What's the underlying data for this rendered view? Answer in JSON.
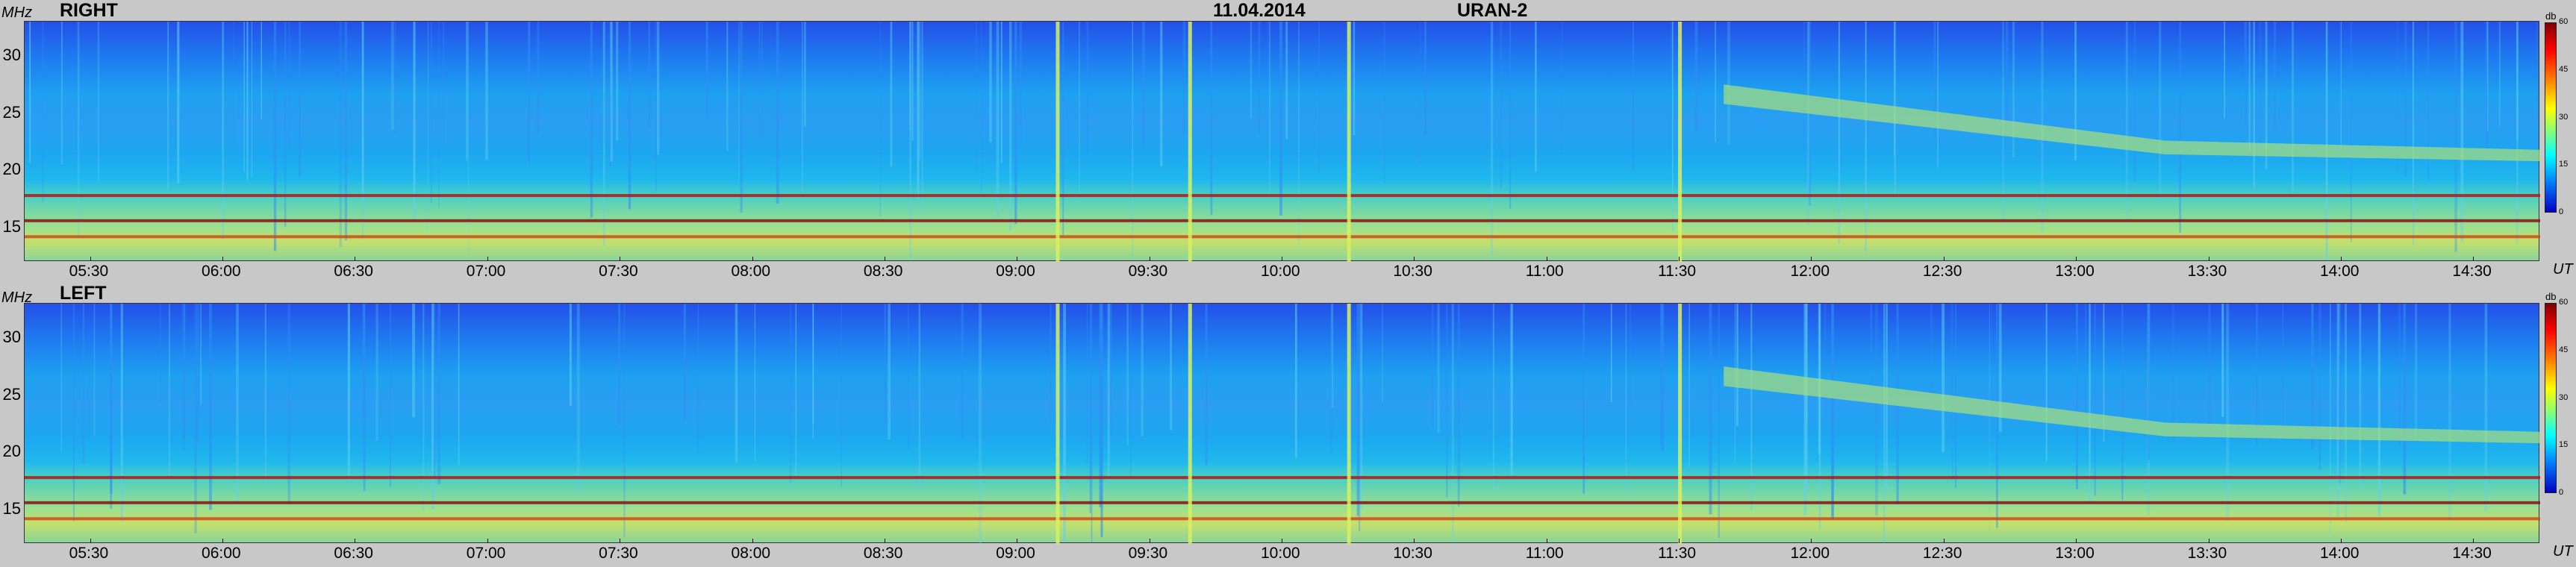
{
  "header": {
    "date": "11.04.2014",
    "instrument": "URAN-2"
  },
  "colors": {
    "background": "#c8c8c8",
    "plot_low": "#2450e8",
    "plot_high": "#c4e06c",
    "band_dark": "#8a1010",
    "band_mid": "#e06020"
  },
  "chart_data": [
    {
      "type": "heatmap",
      "title": "RIGHT",
      "ylabel": "MHz",
      "xlabel": "UT",
      "ylim": [
        12,
        33
      ],
      "yticks": [
        "30",
        "25",
        "20",
        "15"
      ],
      "xticks": [
        "05:30",
        "06:00",
        "06:30",
        "07:00",
        "07:30",
        "08:00",
        "08:30",
        "09:00",
        "09:30",
        "10:00",
        "10:30",
        "11:00",
        "11:30",
        "12:00",
        "12:30",
        "13:00",
        "13:30",
        "14:00",
        "14:30"
      ],
      "colorbar": {
        "unit": "db",
        "range": [
          0,
          60
        ],
        "ticks": [
          "60",
          "45",
          "30",
          "15",
          "0"
        ]
      },
      "bands_mhz": [
        17.8,
        15.6,
        14.2
      ],
      "bursts_ut": [
        "09:09",
        "09:39",
        "10:15",
        "11:30"
      ]
    },
    {
      "type": "heatmap",
      "title": "LEFT",
      "ylabel": "MHz",
      "xlabel": "UT",
      "ylim": [
        12,
        33
      ],
      "yticks": [
        "30",
        "25",
        "20",
        "15"
      ],
      "xticks": [
        "05:30",
        "06:00",
        "06:30",
        "07:00",
        "07:30",
        "08:00",
        "08:30",
        "09:00",
        "09:30",
        "10:00",
        "10:30",
        "11:00",
        "11:30",
        "12:00",
        "12:30",
        "13:00",
        "13:30",
        "14:00",
        "14:30"
      ],
      "colorbar": {
        "unit": "db",
        "range": [
          0,
          60
        ],
        "ticks": [
          "60",
          "45",
          "30",
          "15",
          "0"
        ]
      },
      "bands_mhz": [
        17.8,
        15.6,
        14.2
      ],
      "bursts_ut": [
        "09:09",
        "09:39",
        "10:15",
        "11:30"
      ]
    }
  ]
}
